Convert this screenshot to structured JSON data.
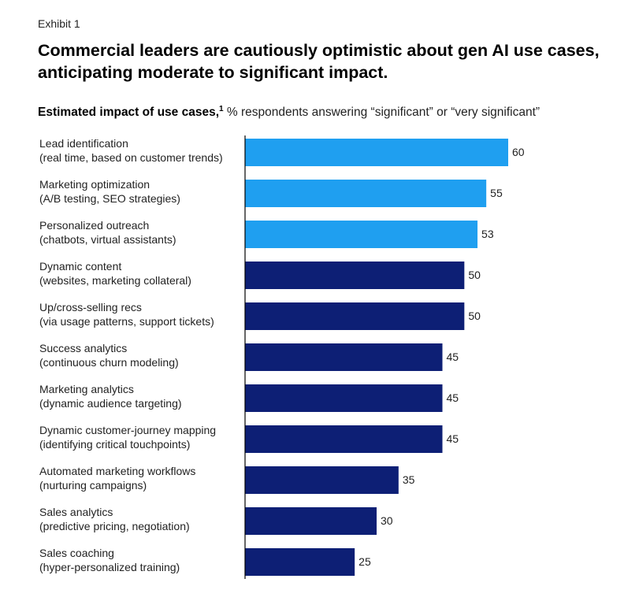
{
  "exhibit_label": "Exhibit 1",
  "headline": "Commercial leaders are cautiously optimistic about gen AI use cases, anticipating moderate to significant impact.",
  "subtitle": {
    "bold": "Estimated impact of use cases,",
    "footnote": "1",
    "rest": "% respondents answering “significant” or “very significant”"
  },
  "colors": {
    "highlight": "#1f9ff0",
    "standard": "#0d1f75",
    "axis": "#000000",
    "text": "#222222"
  },
  "chart_data": {
    "type": "bar",
    "orientation": "horizontal",
    "title": "Estimated impact of use cases",
    "unit": "% respondents answering “significant” or “very significant”",
    "xlim": [
      0,
      60
    ],
    "grid": false,
    "categories": [
      {
        "name": "Lead identification",
        "detail": "(real time, based on customer trends)",
        "value": 60,
        "highlight": true
      },
      {
        "name": "Marketing optimization",
        "detail": "(A/B testing, SEO strategies)",
        "value": 55,
        "highlight": true
      },
      {
        "name": "Personalized outreach",
        "detail": "(chatbots, virtual assistants)",
        "value": 53,
        "highlight": true
      },
      {
        "name": "Dynamic content",
        "detail": "(websites, marketing collateral)",
        "value": 50,
        "highlight": false
      },
      {
        "name": "Up/cross-selling recs",
        "detail": "(via usage patterns, support tickets)",
        "value": 50,
        "highlight": false
      },
      {
        "name": "Success analytics",
        "detail": "(continuous churn modeling)",
        "value": 45,
        "highlight": false
      },
      {
        "name": "Marketing analytics",
        "detail": "(dynamic audience targeting)",
        "value": 45,
        "highlight": false
      },
      {
        "name": "Dynamic customer-journey mapping",
        "detail": "(identifying critical touchpoints)",
        "value": 45,
        "highlight": false
      },
      {
        "name": "Automated marketing workflows",
        "detail": "(nurturing campaigns)",
        "value": 35,
        "highlight": false
      },
      {
        "name": "Sales analytics",
        "detail": "(predictive pricing, negotiation)",
        "value": 30,
        "highlight": false
      },
      {
        "name": "Sales coaching",
        "detail": "(hyper-personalized training)",
        "value": 25,
        "highlight": false
      }
    ]
  }
}
